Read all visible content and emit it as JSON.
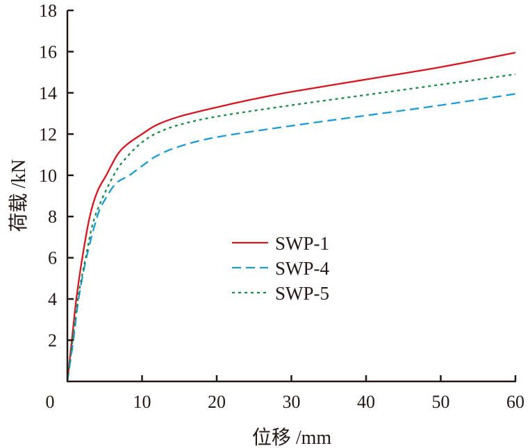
{
  "chart_data": {
    "type": "line",
    "title": "",
    "xlabel": "位移 /mm",
    "ylabel": "荷载 /kN",
    "xlim": [
      0,
      60
    ],
    "ylim": [
      0,
      18
    ],
    "xticks": [
      0,
      10,
      20,
      30,
      40,
      50,
      60
    ],
    "yticks": [
      2,
      4,
      6,
      8,
      10,
      12,
      14,
      16,
      18
    ],
    "grid": false,
    "legend_position": "center",
    "series": [
      {
        "name": "SWP-1",
        "color": "#d7141f",
        "style": "solid",
        "points": [
          [
            0,
            0
          ],
          [
            0.6,
            2
          ],
          [
            1.2,
            4
          ],
          [
            2,
            6
          ],
          [
            3,
            8
          ],
          [
            4,
            9.2
          ],
          [
            5.2,
            10
          ],
          [
            6.7,
            11
          ],
          [
            8,
            11.5
          ],
          [
            10,
            12
          ],
          [
            12,
            12.45
          ],
          [
            15,
            12.85
          ],
          [
            20,
            13.3
          ],
          [
            25,
            13.7
          ],
          [
            30,
            14.05
          ],
          [
            40,
            14.65
          ],
          [
            50,
            15.25
          ],
          [
            60,
            15.95
          ]
        ]
      },
      {
        "name": "SWP-4",
        "color": "#1a9ad6",
        "style": "dashed",
        "points": [
          [
            0,
            0
          ],
          [
            0.8,
            2
          ],
          [
            1.5,
            4
          ],
          [
            2.55,
            6
          ],
          [
            4,
            8
          ],
          [
            5,
            8.8
          ],
          [
            6.5,
            9.6
          ],
          [
            8.3,
            10
          ],
          [
            10,
            10.45
          ],
          [
            12,
            10.95
          ],
          [
            15,
            11.4
          ],
          [
            20,
            11.85
          ],
          [
            30,
            12.4
          ],
          [
            40,
            12.9
          ],
          [
            50,
            13.4
          ],
          [
            60,
            13.95
          ]
        ]
      },
      {
        "name": "SWP-5",
        "color": "#17894a",
        "style": "dotted",
        "points": [
          [
            0,
            0
          ],
          [
            0.7,
            2
          ],
          [
            1.4,
            4
          ],
          [
            2.45,
            6
          ],
          [
            3.7,
            8
          ],
          [
            6.2,
            10
          ],
          [
            8,
            10.9
          ],
          [
            10,
            11.6
          ],
          [
            12,
            12.05
          ],
          [
            15,
            12.45
          ],
          [
            20,
            12.85
          ],
          [
            30,
            13.4
          ],
          [
            40,
            13.9
          ],
          [
            50,
            14.4
          ],
          [
            60,
            14.9
          ]
        ]
      }
    ]
  }
}
